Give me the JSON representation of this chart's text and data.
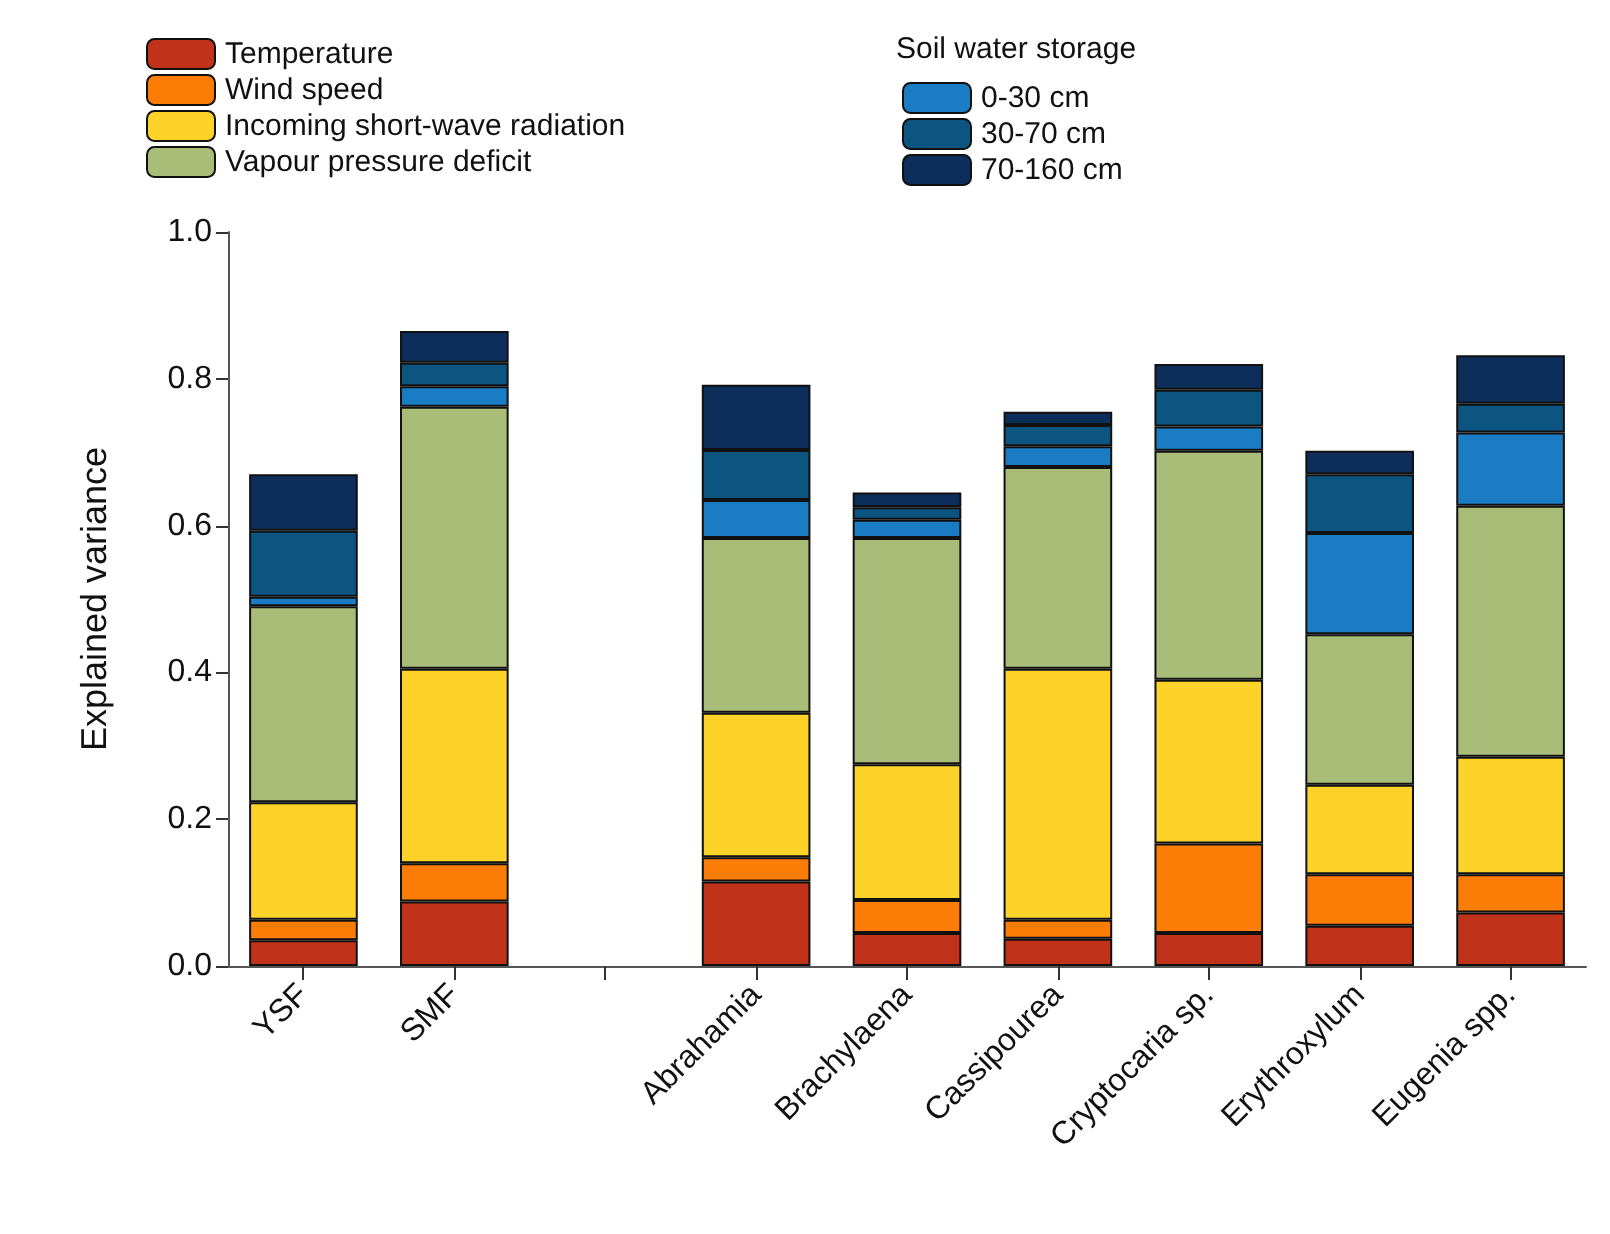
{
  "chart_data": {
    "type": "bar",
    "stacked": true,
    "ylabel": "Explained variance",
    "legend_title": "Soil water storage",
    "legend": "top",
    "grid": false,
    "categories": [
      "YSF",
      "SMF",
      null,
      "Abrahamia",
      "Brachylaena",
      "Cassipourea",
      "Cryptocaria sp.",
      "Erythroxylum",
      "Eugenia spp."
    ],
    "ylim": [
      0,
      1
    ],
    "yticks": [
      {
        "value": 0,
        "label": "0.0"
      },
      0.2,
      0.4,
      0.6,
      0.8,
      {
        "value": 1,
        "label": "1.0"
      }
    ],
    "series": [
      {
        "name": "Temperature",
        "color": "#c0321a",
        "values": [
          0.035,
          0.088,
          null,
          0.115,
          0.045,
          0.037,
          0.045,
          0.055,
          0.073
        ]
      },
      {
        "name": "Wind speed",
        "color": "#fb7d07",
        "values": [
          0.028,
          0.052,
          null,
          0.033,
          0.045,
          0.026,
          0.122,
          0.07,
          0.052
        ]
      },
      {
        "name": "Incoming short-wave radiation",
        "color": "#fdd32a",
        "values": [
          0.16,
          0.265,
          null,
          0.197,
          0.185,
          0.342,
          0.223,
          0.122,
          0.16
        ]
      },
      {
        "name": "Vapour pressure deficit",
        "color": "#a9bd78",
        "values": [
          0.267,
          0.357,
          null,
          0.238,
          0.308,
          0.275,
          0.312,
          0.205,
          0.342
        ]
      },
      {
        "name": "0-30 cm",
        "color": "#1a7dc4",
        "values": [
          0.013,
          0.028,
          null,
          0.052,
          0.025,
          0.028,
          0.033,
          0.138,
          0.1
        ]
      },
      {
        "name": "30-70 cm",
        "color": "#0c5580",
        "values": [
          0.09,
          0.032,
          null,
          0.068,
          0.017,
          0.029,
          0.05,
          0.08,
          0.039
        ]
      },
      {
        "name": "70-160 cm",
        "color": "#0d2d5a",
        "values": [
          0.077,
          0.043,
          null,
          0.089,
          0.02,
          0.018,
          0.035,
          0.032,
          0.066
        ]
      }
    ]
  }
}
